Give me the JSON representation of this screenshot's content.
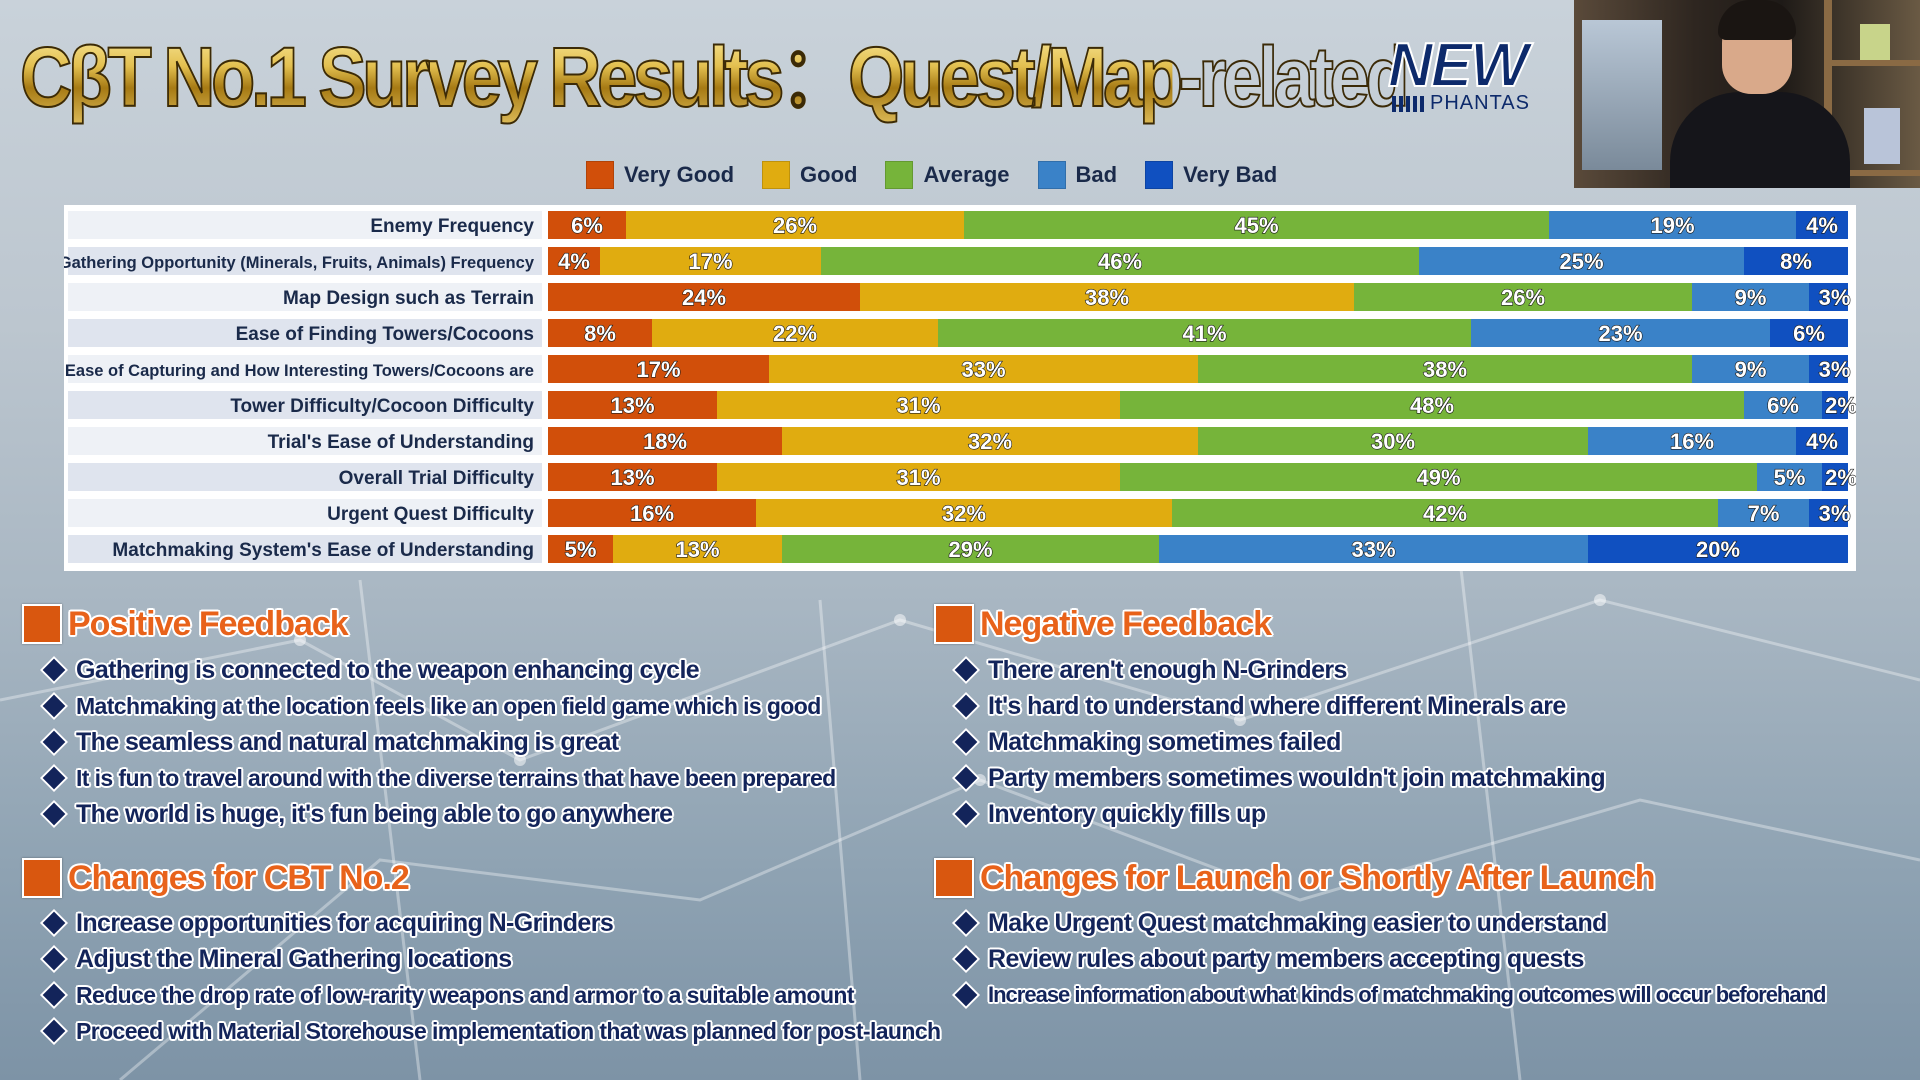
{
  "title": "CβT No.1 Survey Results：Quest/Map-related",
  "logo": {
    "main": "NEW",
    "sub": "PHANTAS"
  },
  "colors": {
    "very_good": "#d14f0a",
    "good": "#e0ac10",
    "average": "#76b43a",
    "bad": "#3a82c8",
    "very_bad": "#1050c0"
  },
  "legend": [
    "Very Good",
    "Good",
    "Average",
    "Bad",
    "Very Bad"
  ],
  "chart_data": {
    "type": "bar",
    "orientation": "horizontal-stacked-100",
    "categories": [
      "Enemy Frequency",
      "Gathering Opportunity (Minerals, Fruits, Animals) Frequency",
      "Map Design such as Terrain",
      "Ease of Finding Towers/Cocoons",
      "Ease of Capturing and How Interesting Towers/Cocoons are",
      "Tower Difficulty/Cocoon Difficulty",
      "Trial's Ease of Understanding",
      "Overall Trial Difficulty",
      "Urgent Quest Difficulty",
      "Matchmaking System's Ease of Understanding"
    ],
    "series": [
      {
        "name": "Very Good",
        "values": [
          6,
          4,
          24,
          8,
          17,
          13,
          18,
          13,
          16,
          5
        ]
      },
      {
        "name": "Good",
        "values": [
          26,
          17,
          38,
          22,
          33,
          31,
          32,
          31,
          32,
          13
        ]
      },
      {
        "name": "Average",
        "values": [
          45,
          46,
          26,
          41,
          38,
          48,
          30,
          49,
          42,
          29
        ]
      },
      {
        "name": "Bad",
        "values": [
          19,
          25,
          9,
          23,
          9,
          6,
          16,
          5,
          7,
          33
        ]
      },
      {
        "name": "Very Bad",
        "values": [
          4,
          8,
          3,
          6,
          3,
          2,
          4,
          2,
          3,
          20
        ]
      }
    ],
    "unit": "%",
    "legend_position": "top"
  },
  "positive": {
    "heading": "Positive Feedback",
    "items": [
      "Gathering is connected to the weapon enhancing cycle",
      "Matchmaking at the location feels like an open field game which is good",
      "The seamless and natural matchmaking is great",
      "It is fun to travel around with the diverse terrains that have been prepared",
      "The world is huge, it's fun being able to go anywhere"
    ]
  },
  "negative": {
    "heading": "Negative Feedback",
    "items": [
      "There aren't enough N-Grinders",
      "It's hard to understand where different Minerals are",
      "Matchmaking sometimes failed",
      "Party members sometimes wouldn't join matchmaking",
      "Inventory quickly fills up"
    ]
  },
  "cbt2": {
    "heading": "Changes for CBT No.2",
    "items": [
      "Increase opportunities for acquiring N-Grinders",
      "Adjust the Mineral Gathering locations",
      "Reduce the drop rate of low-rarity weapons and armor to a suitable amount",
      "Proceed with Material Storehouse implementation that was planned for post-launch"
    ]
  },
  "launch": {
    "heading": "Changes for Launch or Shortly After Launch",
    "items": [
      "Make Urgent Quest matchmaking easier to understand",
      "Review rules about party members accepting quests",
      "Increase information about what kinds of matchmaking outcomes will occur beforehand"
    ]
  }
}
